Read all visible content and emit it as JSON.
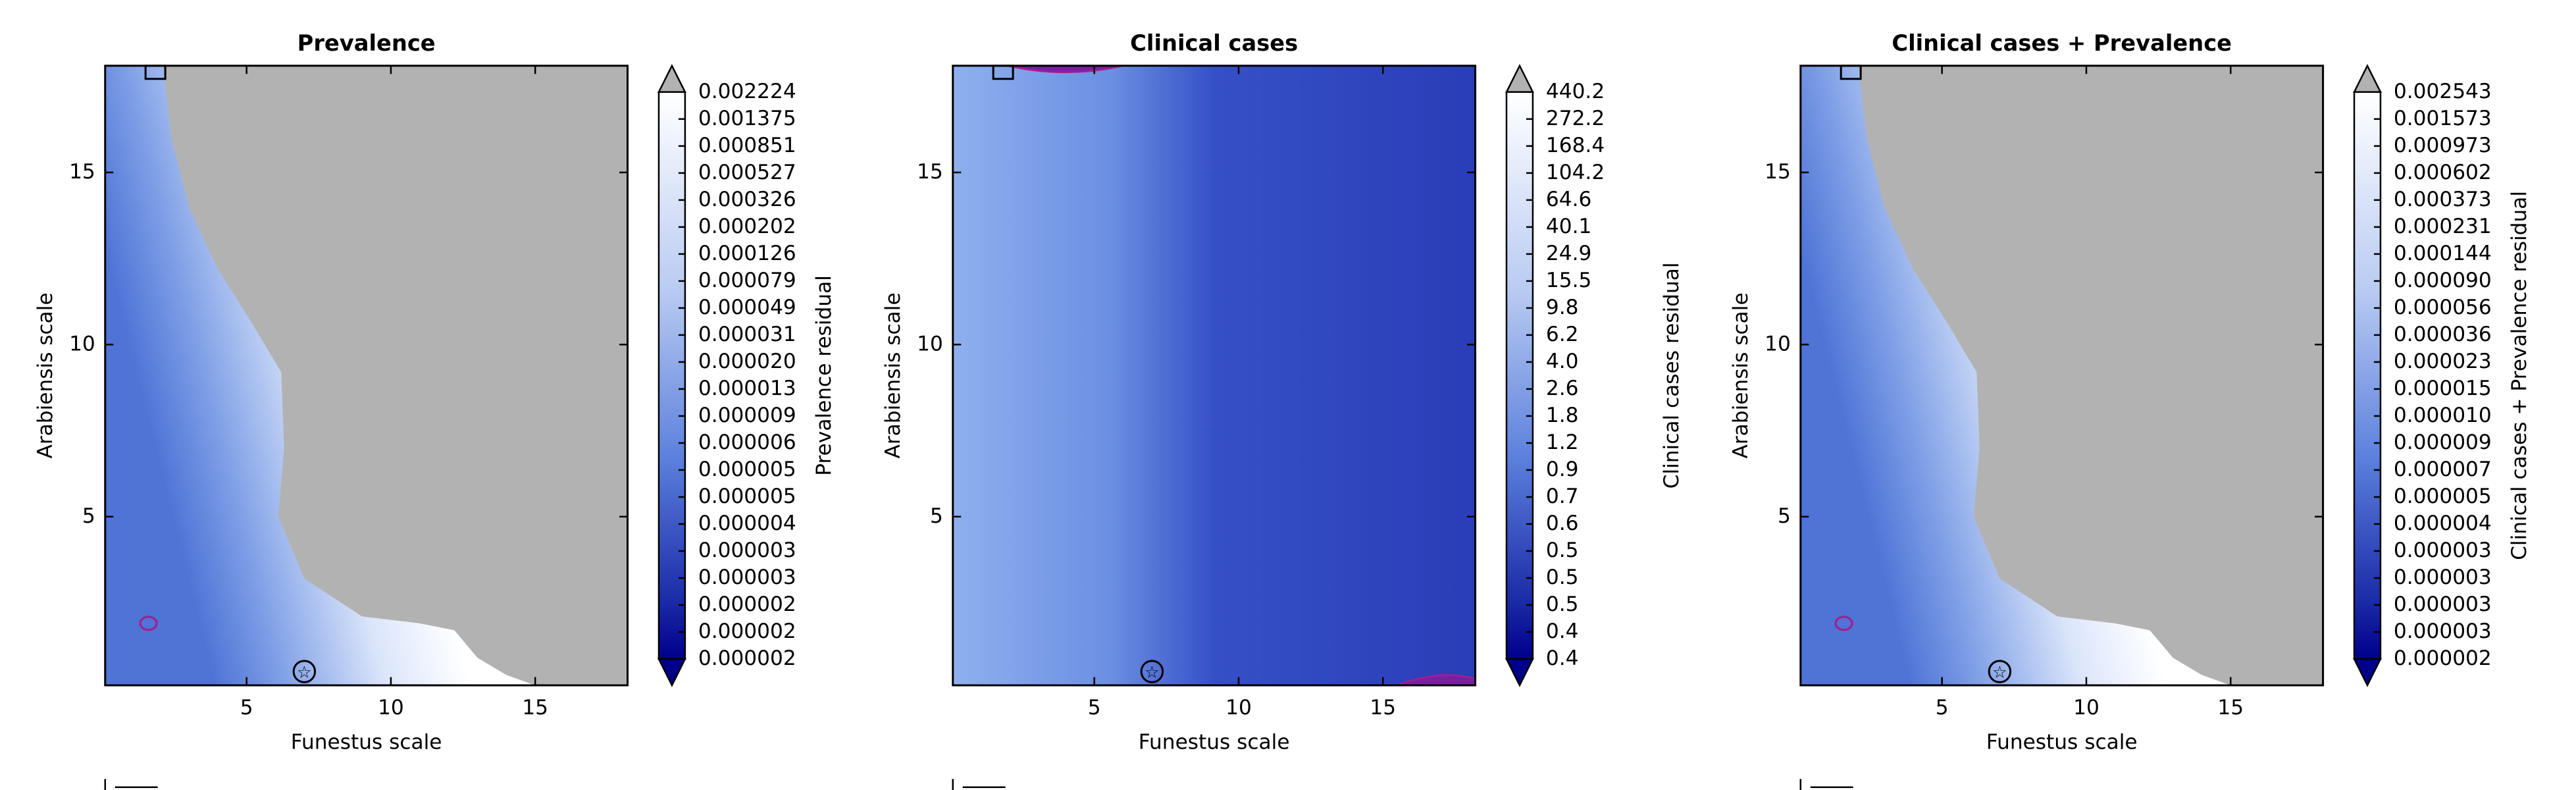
{
  "chart_data": [
    {
      "type": "contour",
      "title": "Prevalence",
      "xlabel": "Funestus scale",
      "ylabel": "Arabiensis scale",
      "xlim": [
        0.1,
        18.2
      ],
      "ylim": [
        0.1,
        18.1
      ],
      "xticks": [
        5,
        10,
        15
      ],
      "yticks": [
        5,
        10,
        15
      ],
      "masked": true,
      "colorbar_label": "Prevalence residual",
      "colorbar_ticks": [
        0.002224,
        0.001375,
        0.000851,
        0.000527,
        0.000326,
        0.000202,
        0.000126,
        7.9e-05,
        4.9e-05,
        3.1e-05,
        {
          "value": 2e-05,
          "label": "0.000020"
        },
        1.3e-05,
        9e-06,
        6e-06,
        5e-06,
        5e-06,
        4e-06,
        3e-06,
        3e-06,
        2e-06,
        2e-06,
        2e-06
      ]
    },
    {
      "type": "contour",
      "title": "Clinical cases",
      "xlabel": "Funestus scale",
      "ylabel": "Arabiensis scale",
      "xlim": [
        0.1,
        18.2
      ],
      "ylim": [
        0.1,
        18.1
      ],
      "xticks": [
        5,
        10,
        15
      ],
      "yticks": [
        5,
        10,
        15
      ],
      "masked": false,
      "colorbar_label": "Clinical cases residual",
      "colorbar_ticks": [
        440.2,
        272.2,
        168.4,
        104.2,
        64.6,
        40.1,
        24.9,
        15.5,
        9.8,
        6.2,
        {
          "value": 4,
          "label": "4.0"
        },
        2.6,
        1.8,
        1.2,
        0.9,
        0.7,
        0.6,
        0.5,
        0.5,
        0.5,
        0.4,
        0.4
      ]
    },
    {
      "type": "contour",
      "title": "Clinical cases + Prevalence",
      "xlabel": "Funestus scale",
      "ylabel": "Arabiensis scale",
      "xlim": [
        0.1,
        18.2
      ],
      "ylim": [
        0.1,
        18.1
      ],
      "xticks": [
        5,
        10,
        15
      ],
      "yticks": [
        5,
        10,
        15
      ],
      "masked": true,
      "colorbar_label": "Clinical cases + Prevalence residual",
      "colorbar_ticks": [
        0.002543,
        0.001573,
        0.000973,
        0.000602,
        0.000373,
        0.000231,
        0.000144,
        {
          "value": 9e-05,
          "label": "0.000090"
        },
        5.6e-05,
        3.6e-05,
        2.3e-05,
        1.5e-05,
        {
          "value": 1e-05,
          "label": "0.000010"
        },
        9e-06,
        7e-06,
        5e-06,
        4e-06,
        3e-06,
        3e-06,
        3e-06,
        3e-06,
        2e-06
      ]
    }
  ]
}
